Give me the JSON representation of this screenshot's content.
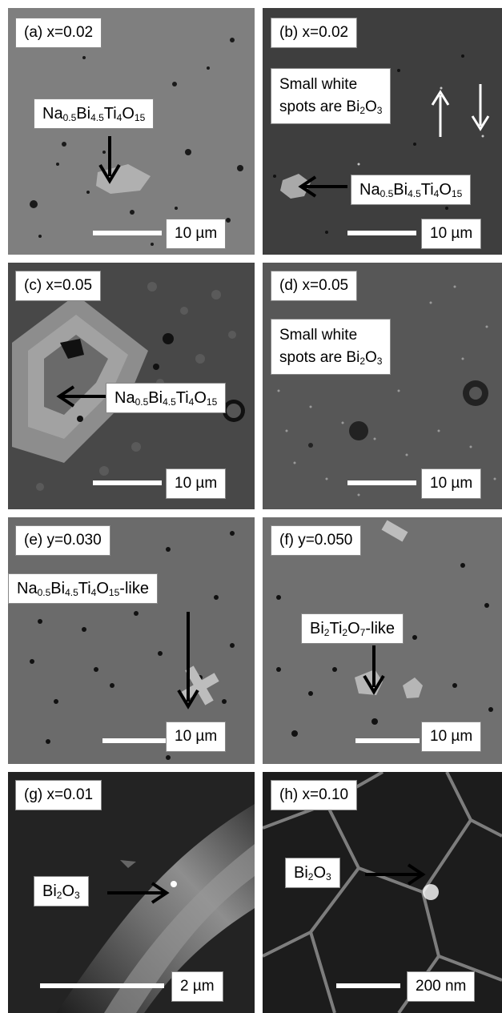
{
  "panels": {
    "a": {
      "label": "(a) x=0.02",
      "phase": "Na0.5Bi4.5Ti4O15",
      "scale": "10 µm"
    },
    "b": {
      "label": "(b) x=0.02",
      "note_line1": "Small white",
      "note_line2": "spots are Bi2O3",
      "phase": "Na0.5Bi4.5Ti4O15",
      "scale": "10 µm"
    },
    "c": {
      "label": "(c) x=0.05",
      "phase": "Na0.5Bi4.5Ti4O15",
      "scale": "10 µm"
    },
    "d": {
      "label": "(d) x=0.05",
      "note_line1": "Small white",
      "note_line2": "spots are Bi2O3",
      "scale": "10 µm"
    },
    "e": {
      "label": "(e) y=0.030",
      "phase": "Na0.5Bi4.5Ti4O15-like",
      "scale": "10 µm"
    },
    "f": {
      "label": "(f) y=0.050",
      "phase": "Bi2Ti2O7-like",
      "scale": "10 µm"
    },
    "g": {
      "label": "(g) x=0.01",
      "phase": "Bi2O3",
      "scale": "2 µm"
    },
    "h": {
      "label": "(h) x=0.10",
      "phase": "Bi2O3",
      "scale": "200 nm"
    }
  },
  "colors": {
    "sem_gray": "#7c7c7c",
    "sem_dark": "#3a3a3a",
    "label_bg": "#ffffff"
  }
}
